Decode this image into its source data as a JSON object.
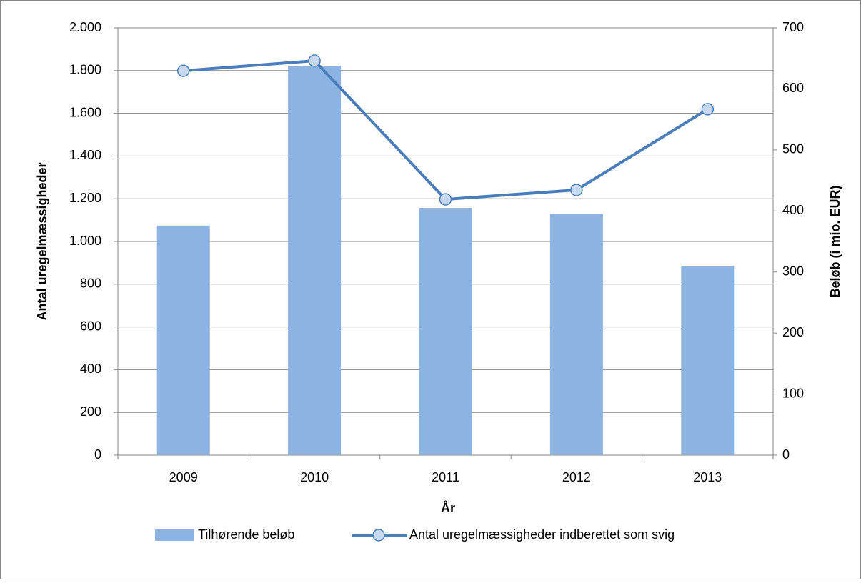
{
  "chart_data": {
    "type": "bar",
    "categories": [
      "2009",
      "2010",
      "2011",
      "2012",
      "2013"
    ],
    "xlabel": "År",
    "ylabel": "Antal uregelmæssigheder",
    "y2label": "Beløb (i mio. EUR)",
    "series": [
      {
        "name": "Tilhørende beløb",
        "type": "bar",
        "axis": "y2",
        "color": "#8db3e2",
        "values": [
          376,
          638,
          405,
          395,
          310
        ]
      },
      {
        "name": "Antal uregelmæssigheder indberettet som svig",
        "type": "line",
        "axis": "y",
        "color": "#4a7ebb",
        "values": [
          1799,
          1846,
          1197,
          1241,
          1619
        ]
      }
    ],
    "ylim": [
      0,
      2000
    ],
    "yticks": [
      0,
      200,
      400,
      600,
      800,
      {
        "value": 1000,
        "label": "1.000"
      },
      {
        "value": 1200,
        "label": "1.200"
      },
      {
        "value": 1400,
        "label": "1.400"
      },
      {
        "value": 1600,
        "label": "1.600"
      },
      {
        "value": 1800,
        "label": "1.800"
      },
      {
        "value": 2000,
        "label": "2.000"
      }
    ],
    "y2lim": [
      0,
      700
    ],
    "y2ticks": [
      0,
      100,
      200,
      300,
      400,
      500,
      600,
      700
    ],
    "grid": true,
    "legend": "bottom"
  }
}
